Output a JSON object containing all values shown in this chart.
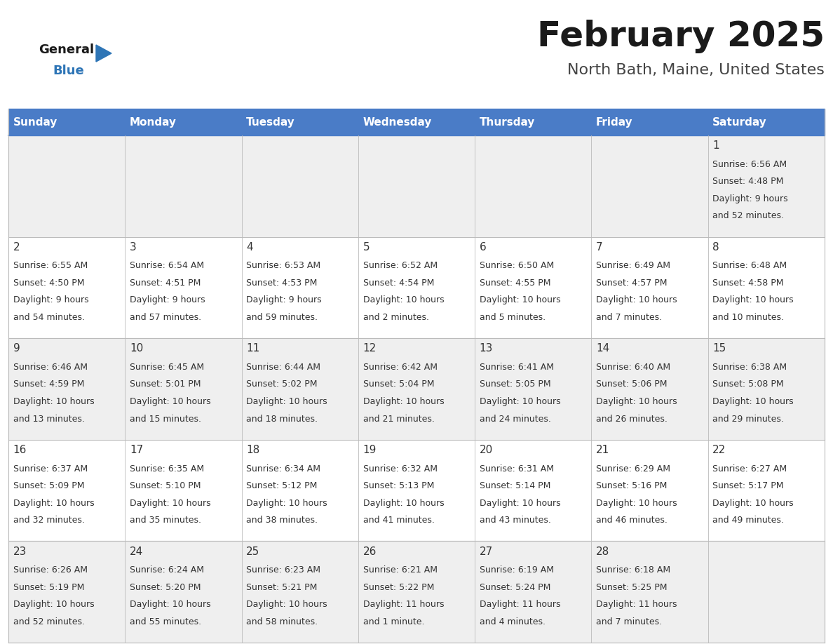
{
  "title": "February 2025",
  "subtitle": "North Bath, Maine, United States",
  "header_bg": "#4A7CC7",
  "header_text_color": "#FFFFFF",
  "day_names": [
    "Sunday",
    "Monday",
    "Tuesday",
    "Wednesday",
    "Thursday",
    "Friday",
    "Saturday"
  ],
  "row_bg_odd": "#EFEFEF",
  "row_bg_even": "#FFFFFF",
  "cell_text_color": "#333333",
  "day_num_color": "#333333",
  "title_color": "#1a1a1a",
  "subtitle_color": "#444444",
  "logo_general_color": "#1a1a1a",
  "logo_blue_color": "#2E75B6",
  "border_color": "#4A7CC7",
  "grid_color": "#BBBBBB",
  "weeks": [
    [
      null,
      null,
      null,
      null,
      null,
      null,
      {
        "day": 1,
        "sunrise": "6:56 AM",
        "sunset": "4:48 PM",
        "daylight": "9 hours\nand 52 minutes."
      }
    ],
    [
      {
        "day": 2,
        "sunrise": "6:55 AM",
        "sunset": "4:50 PM",
        "daylight": "9 hours\nand 54 minutes."
      },
      {
        "day": 3,
        "sunrise": "6:54 AM",
        "sunset": "4:51 PM",
        "daylight": "9 hours\nand 57 minutes."
      },
      {
        "day": 4,
        "sunrise": "6:53 AM",
        "sunset": "4:53 PM",
        "daylight": "9 hours\nand 59 minutes."
      },
      {
        "day": 5,
        "sunrise": "6:52 AM",
        "sunset": "4:54 PM",
        "daylight": "10 hours\nand 2 minutes."
      },
      {
        "day": 6,
        "sunrise": "6:50 AM",
        "sunset": "4:55 PM",
        "daylight": "10 hours\nand 5 minutes."
      },
      {
        "day": 7,
        "sunrise": "6:49 AM",
        "sunset": "4:57 PM",
        "daylight": "10 hours\nand 7 minutes."
      },
      {
        "day": 8,
        "sunrise": "6:48 AM",
        "sunset": "4:58 PM",
        "daylight": "10 hours\nand 10 minutes."
      }
    ],
    [
      {
        "day": 9,
        "sunrise": "6:46 AM",
        "sunset": "4:59 PM",
        "daylight": "10 hours\nand 13 minutes."
      },
      {
        "day": 10,
        "sunrise": "6:45 AM",
        "sunset": "5:01 PM",
        "daylight": "10 hours\nand 15 minutes."
      },
      {
        "day": 11,
        "sunrise": "6:44 AM",
        "sunset": "5:02 PM",
        "daylight": "10 hours\nand 18 minutes."
      },
      {
        "day": 12,
        "sunrise": "6:42 AM",
        "sunset": "5:04 PM",
        "daylight": "10 hours\nand 21 minutes."
      },
      {
        "day": 13,
        "sunrise": "6:41 AM",
        "sunset": "5:05 PM",
        "daylight": "10 hours\nand 24 minutes."
      },
      {
        "day": 14,
        "sunrise": "6:40 AM",
        "sunset": "5:06 PM",
        "daylight": "10 hours\nand 26 minutes."
      },
      {
        "day": 15,
        "sunrise": "6:38 AM",
        "sunset": "5:08 PM",
        "daylight": "10 hours\nand 29 minutes."
      }
    ],
    [
      {
        "day": 16,
        "sunrise": "6:37 AM",
        "sunset": "5:09 PM",
        "daylight": "10 hours\nand 32 minutes."
      },
      {
        "day": 17,
        "sunrise": "6:35 AM",
        "sunset": "5:10 PM",
        "daylight": "10 hours\nand 35 minutes."
      },
      {
        "day": 18,
        "sunrise": "6:34 AM",
        "sunset": "5:12 PM",
        "daylight": "10 hours\nand 38 minutes."
      },
      {
        "day": 19,
        "sunrise": "6:32 AM",
        "sunset": "5:13 PM",
        "daylight": "10 hours\nand 41 minutes."
      },
      {
        "day": 20,
        "sunrise": "6:31 AM",
        "sunset": "5:14 PM",
        "daylight": "10 hours\nand 43 minutes."
      },
      {
        "day": 21,
        "sunrise": "6:29 AM",
        "sunset": "5:16 PM",
        "daylight": "10 hours\nand 46 minutes."
      },
      {
        "day": 22,
        "sunrise": "6:27 AM",
        "sunset": "5:17 PM",
        "daylight": "10 hours\nand 49 minutes."
      }
    ],
    [
      {
        "day": 23,
        "sunrise": "6:26 AM",
        "sunset": "5:19 PM",
        "daylight": "10 hours\nand 52 minutes."
      },
      {
        "day": 24,
        "sunrise": "6:24 AM",
        "sunset": "5:20 PM",
        "daylight": "10 hours\nand 55 minutes."
      },
      {
        "day": 25,
        "sunrise": "6:23 AM",
        "sunset": "5:21 PM",
        "daylight": "10 hours\nand 58 minutes."
      },
      {
        "day": 26,
        "sunrise": "6:21 AM",
        "sunset": "5:22 PM",
        "daylight": "11 hours\nand 1 minute."
      },
      {
        "day": 27,
        "sunrise": "6:19 AM",
        "sunset": "5:24 PM",
        "daylight": "11 hours\nand 4 minutes."
      },
      {
        "day": 28,
        "sunrise": "6:18 AM",
        "sunset": "5:25 PM",
        "daylight": "11 hours\nand 7 minutes."
      },
      null
    ]
  ]
}
